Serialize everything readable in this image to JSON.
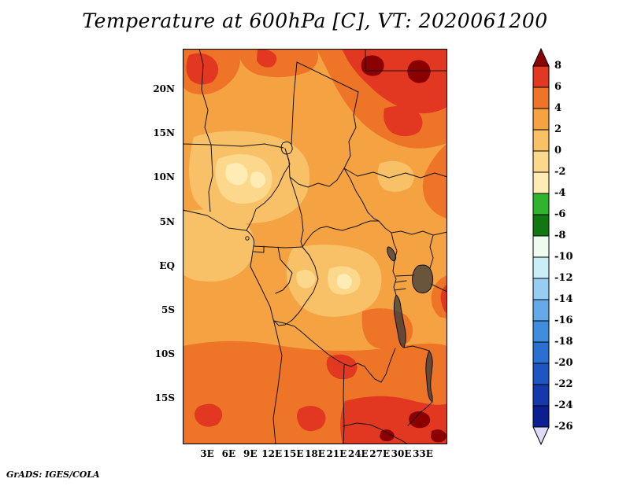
{
  "title": "Temperature at 600hPa [C], VT: 2020061200",
  "footer": "GrADS: IGES/COLA",
  "axes": {
    "lat_ticks": [
      "20N",
      "15N",
      "10N",
      "5N",
      "EQ",
      "5S",
      "10S",
      "15S"
    ],
    "lon_ticks": [
      "3E",
      "6E",
      "9E",
      "12E",
      "15E",
      "18E",
      "21E",
      "24E",
      "27E",
      "30E",
      "33E"
    ]
  },
  "colorbar": {
    "orientation": "vertical",
    "position": "right",
    "labels": [
      "8",
      "6",
      "4",
      "2",
      "0",
      "-2",
      "-4",
      "-6",
      "-8",
      "-10",
      "-12",
      "-14",
      "-16",
      "-18",
      "-20",
      "-22",
      "-24",
      "-26"
    ],
    "palette": [
      {
        "band": ">8",
        "color": "#8b0000"
      },
      {
        "band": "6..8",
        "color": "#e23822"
      },
      {
        "band": "4..6",
        "color": "#ee7528"
      },
      {
        "band": "2..4",
        "color": "#f5a243"
      },
      {
        "band": "0..2",
        "color": "#f9c167"
      },
      {
        "band": "-2..0",
        "color": "#fbd88c"
      },
      {
        "band": "-4..-2",
        "color": "#feecb4"
      },
      {
        "band": "-6..-4",
        "color": "#30b430"
      },
      {
        "band": "-8..-6",
        "color": "#117711"
      },
      {
        "band": "-10..-8",
        "color": "#f0fbf0"
      },
      {
        "band": "-12..-10",
        "color": "#c9eef8"
      },
      {
        "band": "-14..-12",
        "color": "#96cdf0"
      },
      {
        "band": "-16..-14",
        "color": "#64aae8"
      },
      {
        "band": "-18..-16",
        "color": "#3f8ede"
      },
      {
        "band": "-20..-18",
        "color": "#2a6fd2"
      },
      {
        "band": "-22..-20",
        "color": "#1f55c0"
      },
      {
        "band": "-24..-22",
        "color": "#1538ac"
      },
      {
        "band": "-26..-24",
        "color": "#0c1f90"
      },
      {
        "band": "<-26",
        "color": "#dcdcf8"
      }
    ]
  },
  "chart_data": {
    "type": "heatmap",
    "title": "Temperature at 600hPa [C], VT: 2020061200",
    "variable": "Temperature",
    "pressure_level": "600hPa",
    "units": "C",
    "valid_time": "2020061200",
    "x_ticks": [
      "3E",
      "6E",
      "9E",
      "12E",
      "15E",
      "18E",
      "21E",
      "24E",
      "27E",
      "30E",
      "33E"
    ],
    "y_ticks": [
      "20N",
      "15N",
      "10N",
      "5N",
      "EQ",
      "5S",
      "10S",
      "15S"
    ],
    "contour_interval": 2,
    "levels": [
      8,
      6,
      4,
      2,
      0,
      -2,
      -4,
      -6,
      -8,
      -10,
      -12,
      -14,
      -16,
      -18,
      -20,
      -22,
      -24,
      -26
    ],
    "palette_top_to_bottom": [
      "#8b0000",
      "#e23822",
      "#ee7528",
      "#f5a243",
      "#f9c167",
      "#fbd88c",
      "#feecb4",
      "#30b430",
      "#117711",
      "#f0fbf0",
      "#c9eef8",
      "#96cdf0",
      "#64aae8",
      "#3f8ede",
      "#2a6fd2",
      "#1f55c0",
      "#1538ac",
      "#0c1f90",
      "#dcdcf8"
    ],
    "legend_position": "right",
    "overlay": "political boundaries and lakes, Central Africa",
    "field_summary": [
      {
        "area": "most of domain",
        "approx_temp_C": "2 to 4"
      },
      {
        "area": "far north and northeast corner",
        "approx_temp_C": "4 to >8"
      },
      {
        "area": "west-central highlands pockets (~8-12N)",
        "approx_temp_C": "-4 to 0"
      },
      {
        "area": "equatorial interior pockets",
        "approx_temp_C": "-2 to 0"
      },
      {
        "area": "southern quarter (south of ~8S)",
        "approx_temp_C": "4 to 6"
      },
      {
        "area": "far south and southeast",
        "approx_temp_C": "6 to >8 with small >8 cores"
      }
    ]
  }
}
